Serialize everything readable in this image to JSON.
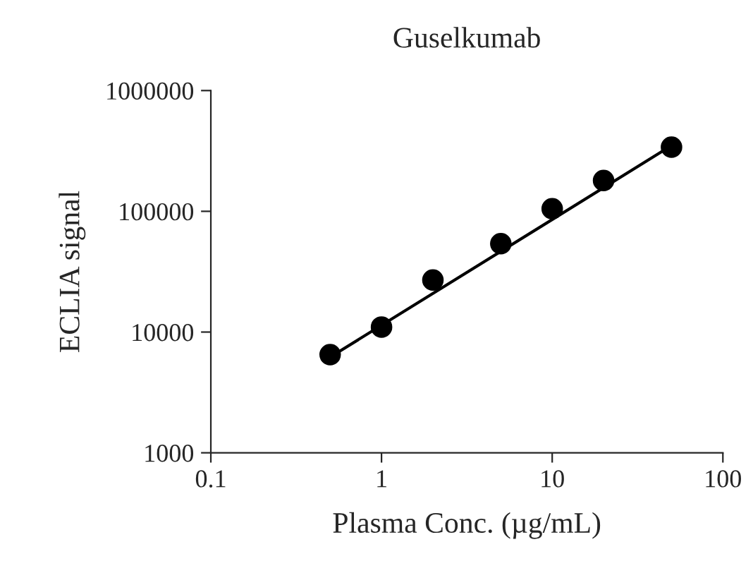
{
  "chart_data": {
    "type": "scatter",
    "title": "Guselkumab",
    "xlabel": "Plasma Conc. (µg/mL)",
    "ylabel": "ECLIA signal",
    "log": "xy",
    "grid": false,
    "legend": false,
    "xlim": [
      0.1,
      100
    ],
    "xticks": [
      0.1,
      1,
      10,
      100
    ],
    "ylim": [
      1000,
      1000000
    ],
    "yticks": [
      1000,
      10000,
      100000,
      1000000
    ],
    "series": [
      {
        "marker": "circle",
        "color": "#000000",
        "x": [
          0.5,
          1,
          2,
          5,
          10,
          20,
          50
        ],
        "values": [
          6500,
          11000,
          27000,
          54000,
          105000,
          180000,
          340000
        ]
      },
      {
        "type": "line",
        "color": "#000000",
        "marker": "none",
        "line_style": "solid",
        "x": [
          0.5,
          50
        ],
        "values": [
          6200,
          350000
        ]
      }
    ]
  }
}
